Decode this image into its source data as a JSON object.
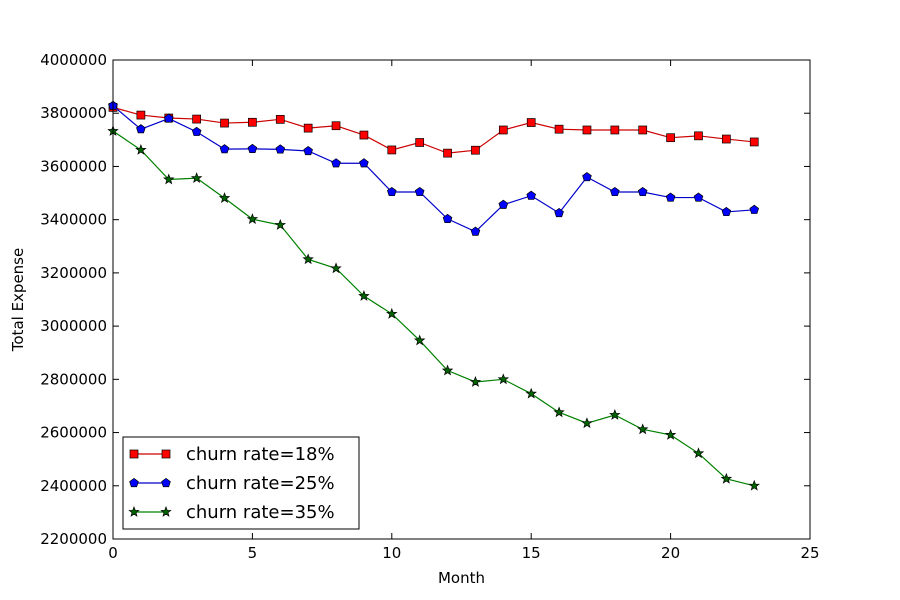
{
  "chart_data": {
    "type": "line",
    "title": "",
    "xlabel": "Month",
    "ylabel": "Total Expense",
    "xlim": [
      0,
      25
    ],
    "ylim": [
      2200000,
      4000000
    ],
    "x_ticks": [
      0,
      5,
      10,
      15,
      20,
      25
    ],
    "y_ticks": [
      2200000,
      2400000,
      2600000,
      2800000,
      3000000,
      3200000,
      3400000,
      3600000,
      3800000,
      4000000
    ],
    "grid": false,
    "legend_position": "lower-left",
    "x": [
      0,
      1,
      2,
      3,
      4,
      5,
      6,
      7,
      8,
      9,
      10,
      11,
      12,
      13,
      14,
      15,
      16,
      17,
      18,
      19,
      20,
      21,
      22,
      23
    ],
    "series": [
      {
        "name": "churn rate=18%",
        "color": "#ff0000",
        "line_color": "#cc0000",
        "marker": "square",
        "values": [
          3822000,
          3793000,
          3782000,
          3778000,
          3763000,
          3766000,
          3777000,
          3744000,
          3753000,
          3718000,
          3662000,
          3690000,
          3650000,
          3661000,
          3737000,
          3765000,
          3740000,
          3737000,
          3737000,
          3737000,
          3708000,
          3715000,
          3703000,
          3692000
        ]
      },
      {
        "name": "churn rate=25%",
        "color": "#0000ff",
        "line_color": "#0000cc",
        "marker": "pentagon",
        "values": [
          3828000,
          3740000,
          3780000,
          3730000,
          3665000,
          3666000,
          3664000,
          3658000,
          3612000,
          3612000,
          3504000,
          3504000,
          3403000,
          3355000,
          3456000,
          3490000,
          3425000,
          3560000,
          3504000,
          3504000,
          3483000,
          3483000,
          3429000,
          3437000
        ]
      },
      {
        "name": "churn rate=35%",
        "color": "#006400",
        "line_color": "#008000",
        "marker": "star",
        "values": [
          3733000,
          3662000,
          3551000,
          3556000,
          3481000,
          3402000,
          3380000,
          3251000,
          3217000,
          3113000,
          3046000,
          2946000,
          2833000,
          2790000,
          2800000,
          2746000,
          2676000,
          2635000,
          2666000,
          2612000,
          2591000,
          2522000,
          2426000,
          2400000
        ]
      }
    ]
  }
}
